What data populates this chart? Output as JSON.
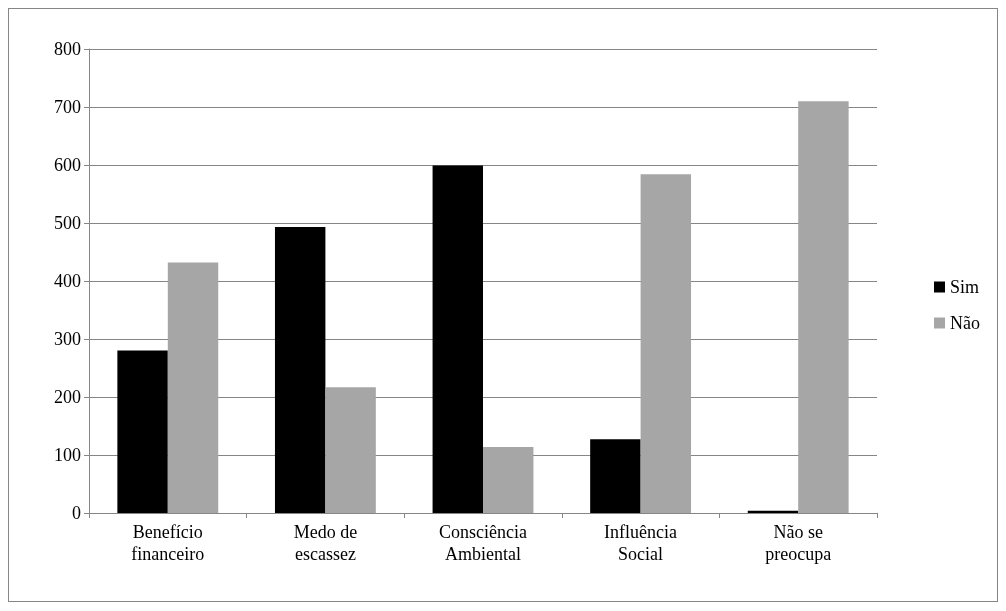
{
  "chart_data": {
    "type": "bar",
    "categories": [
      "Benefício\nfinanceiro",
      "Medo de\nescassez",
      "Consciência\nAmbiental",
      "Influência\nSocial",
      "Não se\npreocupa"
    ],
    "series": [
      {
        "name": "Sim",
        "color": "#000000",
        "values": [
          280,
          493,
          599,
          127,
          4
        ]
      },
      {
        "name": "Não",
        "color": "#a6a6a6",
        "values": [
          432,
          217,
          114,
          584,
          710
        ]
      }
    ],
    "ylim": [
      0,
      800
    ],
    "yticks": [
      0,
      100,
      200,
      300,
      400,
      500,
      600,
      700,
      800
    ],
    "grid": "y",
    "legend": "right"
  }
}
